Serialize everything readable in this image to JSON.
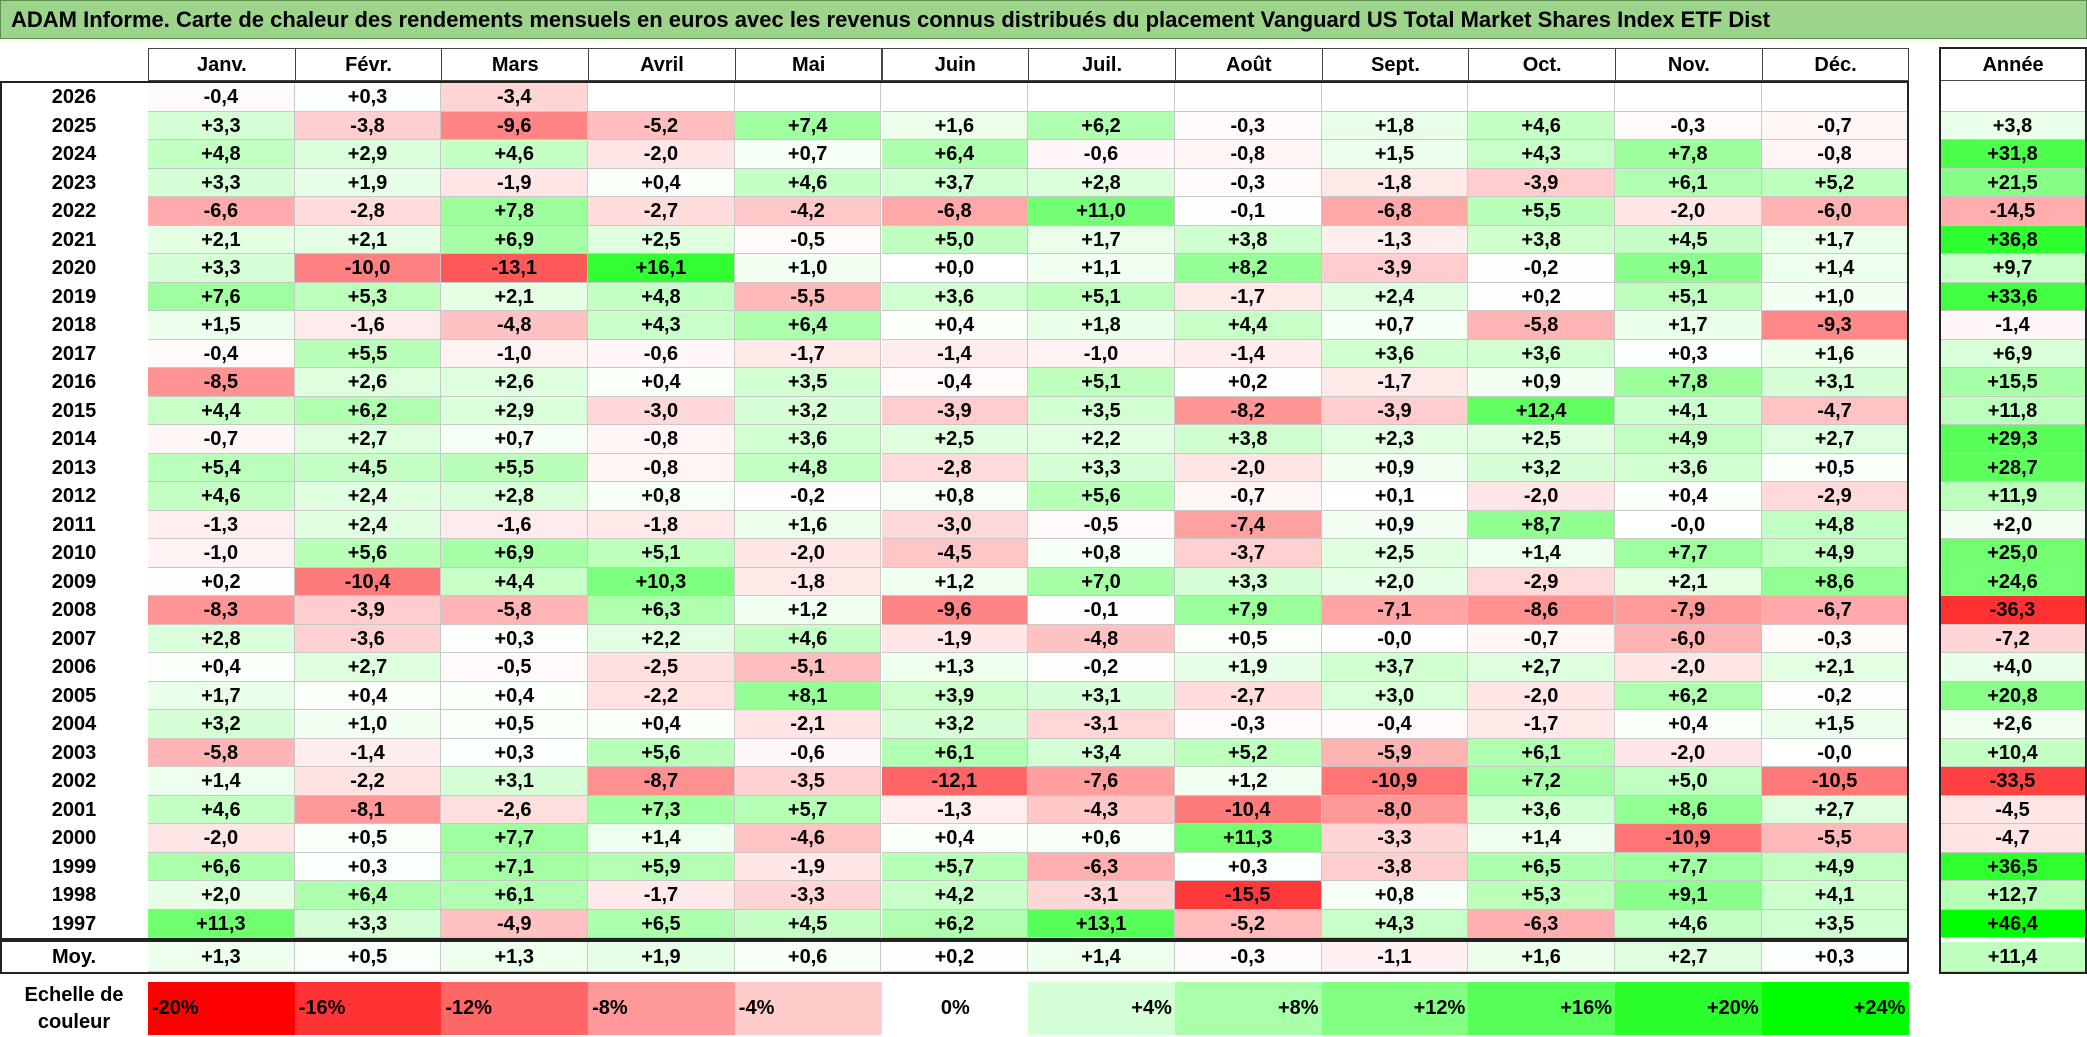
{
  "title": "ADAM Informe. Carte de chaleur des rendements mensuels en euros avec les revenus connus distribués du placement Vanguard US Total Market Shares Index ETF Dist",
  "year_header": "Année",
  "average_label": "Moy.",
  "scale_label_line1": "Echelle de",
  "scale_label_line2": "couleur",
  "chart_data": {
    "type": "heatmap",
    "title": "ADAM Informe. Carte de chaleur des rendements mensuels en euros avec les revenus connus distribués du placement Vanguard US Total Market Shares Index ETF Dist",
    "months": [
      "Janv.",
      "Févr.",
      "Mars",
      "Avril",
      "Mai",
      "Juin",
      "Juil.",
      "Août",
      "Sept.",
      "Oct.",
      "Nov.",
      "Déc."
    ],
    "rows": [
      {
        "year": "2026",
        "values": [
          "-0,4",
          "+0,3",
          "-3,4",
          "",
          "",
          "",
          "",
          "",
          "",
          "",
          "",
          ""
        ],
        "annual": ""
      },
      {
        "year": "2025",
        "values": [
          "+3,3",
          "-3,8",
          "-9,6",
          "-5,2",
          "+7,4",
          "+1,6",
          "+6,2",
          "-0,3",
          "+1,8",
          "+4,6",
          "-0,3",
          "-0,7"
        ],
        "annual": "+3,8"
      },
      {
        "year": "2024",
        "values": [
          "+4,8",
          "+2,9",
          "+4,6",
          "-2,0",
          "+0,7",
          "+6,4",
          "-0,6",
          "-0,8",
          "+1,5",
          "+4,3",
          "+7,8",
          "-0,8"
        ],
        "annual": "+31,8"
      },
      {
        "year": "2023",
        "values": [
          "+3,3",
          "+1,9",
          "-1,9",
          "+0,4",
          "+4,6",
          "+3,7",
          "+2,8",
          "-0,3",
          "-1,8",
          "-3,9",
          "+6,1",
          "+5,2"
        ],
        "annual": "+21,5"
      },
      {
        "year": "2022",
        "values": [
          "-6,6",
          "-2,8",
          "+7,8",
          "-2,7",
          "-4,2",
          "-6,8",
          "+11,0",
          "-0,1",
          "-6,8",
          "+5,5",
          "-2,0",
          "-6,0"
        ],
        "annual": "-14,5"
      },
      {
        "year": "2021",
        "values": [
          "+2,1",
          "+2,1",
          "+6,9",
          "+2,5",
          "-0,5",
          "+5,0",
          "+1,7",
          "+3,8",
          "-1,3",
          "+3,8",
          "+4,5",
          "+1,7"
        ],
        "annual": "+36,8"
      },
      {
        "year": "2020",
        "values": [
          "+3,3",
          "-10,0",
          "-13,1",
          "+16,1",
          "+1,0",
          "+0,0",
          "+1,1",
          "+8,2",
          "-3,9",
          "-0,2",
          "+9,1",
          "+1,4"
        ],
        "annual": "+9,7"
      },
      {
        "year": "2019",
        "values": [
          "+7,6",
          "+5,3",
          "+2,1",
          "+4,8",
          "-5,5",
          "+3,6",
          "+5,1",
          "-1,7",
          "+2,4",
          "+0,2",
          "+5,1",
          "+1,0"
        ],
        "annual": "+33,6"
      },
      {
        "year": "2018",
        "values": [
          "+1,5",
          "-1,6",
          "-4,8",
          "+4,3",
          "+6,4",
          "+0,4",
          "+1,8",
          "+4,4",
          "+0,7",
          "-5,8",
          "+1,7",
          "-9,3"
        ],
        "annual": "-1,4"
      },
      {
        "year": "2017",
        "values": [
          "-0,4",
          "+5,5",
          "-1,0",
          "-0,6",
          "-1,7",
          "-1,4",
          "-1,0",
          "-1,4",
          "+3,6",
          "+3,6",
          "+0,3",
          "+1,6"
        ],
        "annual": "+6,9"
      },
      {
        "year": "2016",
        "values": [
          "-8,5",
          "+2,6",
          "+2,6",
          "+0,4",
          "+3,5",
          "-0,4",
          "+5,1",
          "+0,2",
          "-1,7",
          "+0,9",
          "+7,8",
          "+3,1"
        ],
        "annual": "+15,5"
      },
      {
        "year": "2015",
        "values": [
          "+4,4",
          "+6,2",
          "+2,9",
          "-3,0",
          "+3,2",
          "-3,9",
          "+3,5",
          "-8,2",
          "-3,9",
          "+12,4",
          "+4,1",
          "-4,7"
        ],
        "annual": "+11,8"
      },
      {
        "year": "2014",
        "values": [
          "-0,7",
          "+2,7",
          "+0,7",
          "-0,8",
          "+3,6",
          "+2,5",
          "+2,2",
          "+3,8",
          "+2,3",
          "+2,5",
          "+4,9",
          "+2,7"
        ],
        "annual": "+29,3"
      },
      {
        "year": "2013",
        "values": [
          "+5,4",
          "+4,5",
          "+5,5",
          "-0,8",
          "+4,8",
          "-2,8",
          "+3,3",
          "-2,0",
          "+0,9",
          "+3,2",
          "+3,6",
          "+0,5"
        ],
        "annual": "+28,7"
      },
      {
        "year": "2012",
        "values": [
          "+4,6",
          "+2,4",
          "+2,8",
          "+0,8",
          "-0,2",
          "+0,8",
          "+5,6",
          "-0,7",
          "+0,1",
          "-2,0",
          "+0,4",
          "-2,9"
        ],
        "annual": "+11,9"
      },
      {
        "year": "2011",
        "values": [
          "-1,3",
          "+2,4",
          "-1,6",
          "-1,8",
          "+1,6",
          "-3,0",
          "-0,5",
          "-7,4",
          "+0,9",
          "+8,7",
          "-0,0",
          "+4,8"
        ],
        "annual": "+2,0"
      },
      {
        "year": "2010",
        "values": [
          "-1,0",
          "+5,6",
          "+6,9",
          "+5,1",
          "-2,0",
          "-4,5",
          "+0,8",
          "-3,7",
          "+2,5",
          "+1,4",
          "+7,7",
          "+4,9"
        ],
        "annual": "+25,0"
      },
      {
        "year": "2009",
        "values": [
          "+0,2",
          "-10,4",
          "+4,4",
          "+10,3",
          "-1,8",
          "+1,2",
          "+7,0",
          "+3,3",
          "+2,0",
          "-2,9",
          "+2,1",
          "+8,6"
        ],
        "annual": "+24,6"
      },
      {
        "year": "2008",
        "values": [
          "-8,3",
          "-3,9",
          "-5,8",
          "+6,3",
          "+1,2",
          "-9,6",
          "-0,1",
          "+7,9",
          "-7,1",
          "-8,6",
          "-7,9",
          "-6,7"
        ],
        "annual": "-36,3"
      },
      {
        "year": "2007",
        "values": [
          "+2,8",
          "-3,6",
          "+0,3",
          "+2,2",
          "+4,6",
          "-1,9",
          "-4,8",
          "+0,5",
          "-0,0",
          "-0,7",
          "-6,0",
          "-0,3"
        ],
        "annual": "-7,2"
      },
      {
        "year": "2006",
        "values": [
          "+0,4",
          "+2,7",
          "-0,5",
          "-2,5",
          "-5,1",
          "+1,3",
          "-0,2",
          "+1,9",
          "+3,7",
          "+2,7",
          "-2,0",
          "+2,1"
        ],
        "annual": "+4,0"
      },
      {
        "year": "2005",
        "values": [
          "+1,7",
          "+0,4",
          "+0,4",
          "-2,2",
          "+8,1",
          "+3,9",
          "+3,1",
          "-2,7",
          "+3,0",
          "-2,0",
          "+6,2",
          "-0,2"
        ],
        "annual": "+20,8"
      },
      {
        "year": "2004",
        "values": [
          "+3,2",
          "+1,0",
          "+0,5",
          "+0,4",
          "-2,1",
          "+3,2",
          "-3,1",
          "-0,3",
          "-0,4",
          "-1,7",
          "+0,4",
          "+1,5"
        ],
        "annual": "+2,6"
      },
      {
        "year": "2003",
        "values": [
          "-5,8",
          "-1,4",
          "+0,3",
          "+5,6",
          "-0,6",
          "+6,1",
          "+3,4",
          "+5,2",
          "-5,9",
          "+6,1",
          "-2,0",
          "-0,0"
        ],
        "annual": "+10,4"
      },
      {
        "year": "2002",
        "values": [
          "+1,4",
          "-2,2",
          "+3,1",
          "-8,7",
          "-3,5",
          "-12,1",
          "-7,6",
          "+1,2",
          "-10,9",
          "+7,2",
          "+5,0",
          "-10,5"
        ],
        "annual": "-33,5"
      },
      {
        "year": "2001",
        "values": [
          "+4,6",
          "-8,1",
          "-2,6",
          "+7,3",
          "+5,7",
          "-1,3",
          "-4,3",
          "-10,4",
          "-8,0",
          "+3,6",
          "+8,6",
          "+2,7"
        ],
        "annual": "-4,5"
      },
      {
        "year": "2000",
        "values": [
          "-2,0",
          "+0,5",
          "+7,7",
          "+1,4",
          "-4,6",
          "+0,4",
          "+0,6",
          "+11,3",
          "-3,3",
          "+1,4",
          "-10,9",
          "-5,5"
        ],
        "annual": "-4,7"
      },
      {
        "year": "1999",
        "values": [
          "+6,6",
          "+0,3",
          "+7,1",
          "+5,9",
          "-1,9",
          "+5,7",
          "-6,3",
          "+0,3",
          "-3,8",
          "+6,5",
          "+7,7",
          "+4,9"
        ],
        "annual": "+36,5"
      },
      {
        "year": "1998",
        "values": [
          "+2,0",
          "+6,4",
          "+6,1",
          "-1,7",
          "-3,3",
          "+4,2",
          "-3,1",
          "-15,5",
          "+0,8",
          "+5,3",
          "+9,1",
          "+4,1"
        ],
        "annual": "+12,7"
      },
      {
        "year": "1997",
        "values": [
          "+11,3",
          "+3,3",
          "-4,9",
          "+6,5",
          "+4,5",
          "+6,2",
          "+13,1",
          "-5,2",
          "+4,3",
          "-6,3",
          "+4,6",
          "+3,5"
        ],
        "annual": "+46,4"
      }
    ],
    "averages": {
      "values": [
        "+1,3",
        "+0,5",
        "+1,3",
        "+1,9",
        "+0,6",
        "+0,2",
        "+1,4",
        "-0,3",
        "-1,1",
        "+1,6",
        "+2,7",
        "+0,3"
      ],
      "annual": "+11,4"
    },
    "color_scale": [
      {
        "label": "-20%",
        "value": -20,
        "color": "#ff0000"
      },
      {
        "label": "-16%",
        "value": -16,
        "color": "#ff3333"
      },
      {
        "label": "-12%",
        "value": -12,
        "color": "#ff6666"
      },
      {
        "label": "-8%",
        "value": -8,
        "color": "#ff9999"
      },
      {
        "label": "-4%",
        "value": -4,
        "color": "#ffcccc"
      },
      {
        "label": "0%",
        "value": 0,
        "color": "#ffffff"
      },
      {
        "label": "+4%",
        "value": 4,
        "color": "#d5ffd5"
      },
      {
        "label": "+8%",
        "value": 8,
        "color": "#aaffaa"
      },
      {
        "label": "+12%",
        "value": 12,
        "color": "#80ff80"
      },
      {
        "label": "+16%",
        "value": 16,
        "color": "#55ff55"
      },
      {
        "label": "+20%",
        "value": 20,
        "color": "#2bff2b"
      },
      {
        "label": "+24%",
        "value": 24,
        "color": "#00ff00"
      }
    ]
  }
}
